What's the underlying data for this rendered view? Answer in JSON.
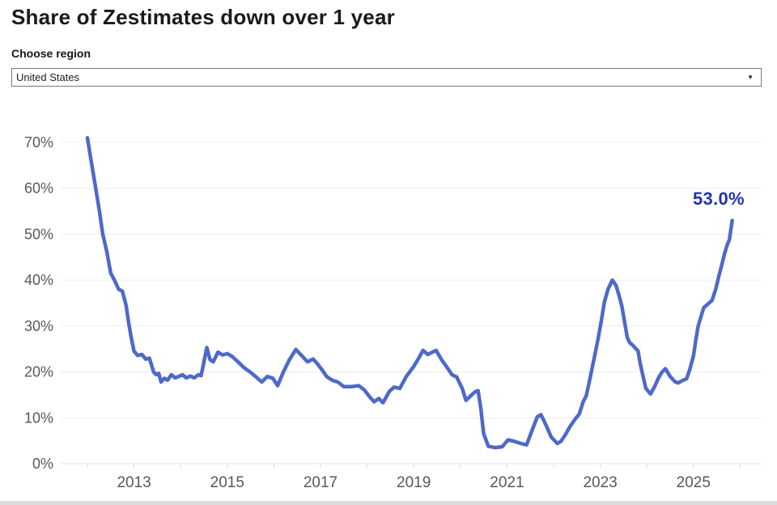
{
  "header": {
    "title": "Share of Zestimates down over 1 year"
  },
  "controls": {
    "region_label": "Choose region",
    "region_value": "United States",
    "dropdown_arrow_icon": "▼"
  },
  "colors": {
    "line": "#4e69c9",
    "end_label": "#1f35ad",
    "axis_text": "#56585a",
    "gridline": "#ececec",
    "baseline": "#e6e6e6",
    "tick": "#d9d9d9",
    "title_text": "#1a1a1a",
    "select_border": "#7a7a7a",
    "bottom_strip": "#dcdcdc"
  },
  "chart_data": {
    "type": "line",
    "title": "Share of Zestimates down over 1 year",
    "region": "United States",
    "y_unit": "%",
    "grid": true,
    "y_ticks": [
      0,
      10,
      20,
      30,
      40,
      50,
      60,
      70
    ],
    "y_range": [
      0,
      70
    ],
    "x_labeled_years": [
      2013,
      2015,
      2017,
      2019,
      2021,
      2023,
      2025
    ],
    "x_minor_years": [
      2012,
      2013,
      2014,
      2015,
      2016,
      2017,
      2018,
      2019,
      2020,
      2021,
      2022,
      2023,
      2024,
      2025,
      2026
    ],
    "x_range": [
      2011.4,
      2026.5
    ],
    "end_label": "53.0%",
    "end_value": 53.0,
    "series": [
      {
        "name": "United States",
        "points": [
          [
            2012.0,
            71
          ],
          [
            2012.08,
            66
          ],
          [
            2012.17,
            60.5
          ],
          [
            2012.25,
            55.5
          ],
          [
            2012.33,
            50
          ],
          [
            2012.42,
            46
          ],
          [
            2012.5,
            41.5
          ],
          [
            2012.58,
            40
          ],
          [
            2012.67,
            38
          ],
          [
            2012.75,
            37.6
          ],
          [
            2012.83,
            34.5
          ],
          [
            2012.88,
            31
          ],
          [
            2012.94,
            27.5
          ],
          [
            2013.0,
            24.5
          ],
          [
            2013.08,
            23.6
          ],
          [
            2013.17,
            23.8
          ],
          [
            2013.25,
            22.8
          ],
          [
            2013.33,
            23.0
          ],
          [
            2013.42,
            20.0
          ],
          [
            2013.48,
            19.4
          ],
          [
            2013.53,
            19.7
          ],
          [
            2013.58,
            17.8
          ],
          [
            2013.65,
            18.6
          ],
          [
            2013.72,
            18.2
          ],
          [
            2013.8,
            19.4
          ],
          [
            2013.88,
            18.7
          ],
          [
            2013.96,
            19.0
          ],
          [
            2014.04,
            19.4
          ],
          [
            2014.12,
            18.7
          ],
          [
            2014.21,
            19.1
          ],
          [
            2014.29,
            18.7
          ],
          [
            2014.38,
            19.4
          ],
          [
            2014.44,
            19.2
          ],
          [
            2014.5,
            22.2
          ],
          [
            2014.56,
            25.3
          ],
          [
            2014.63,
            22.7
          ],
          [
            2014.7,
            22.2
          ],
          [
            2014.8,
            24.3
          ],
          [
            2014.9,
            23.7
          ],
          [
            2015.0,
            24.0
          ],
          [
            2015.1,
            23.4
          ],
          [
            2015.22,
            22.3
          ],
          [
            2015.35,
            21.0
          ],
          [
            2015.5,
            19.9
          ],
          [
            2015.64,
            18.7
          ],
          [
            2015.74,
            17.8
          ],
          [
            2015.86,
            19.0
          ],
          [
            2015.98,
            18.6
          ],
          [
            2016.08,
            17.0
          ],
          [
            2016.2,
            19.9
          ],
          [
            2016.33,
            22.6
          ],
          [
            2016.47,
            24.9
          ],
          [
            2016.6,
            23.5
          ],
          [
            2016.72,
            22.2
          ],
          [
            2016.84,
            22.8
          ],
          [
            2016.94,
            21.7
          ],
          [
            2017.03,
            20.5
          ],
          [
            2017.13,
            19.0
          ],
          [
            2017.25,
            18.2
          ],
          [
            2017.37,
            17.8
          ],
          [
            2017.5,
            16.8
          ],
          [
            2017.66,
            16.8
          ],
          [
            2017.82,
            17.0
          ],
          [
            2017.94,
            16.1
          ],
          [
            2018.05,
            14.6
          ],
          [
            2018.15,
            13.5
          ],
          [
            2018.25,
            14.2
          ],
          [
            2018.34,
            13.3
          ],
          [
            2018.48,
            15.8
          ],
          [
            2018.58,
            16.7
          ],
          [
            2018.7,
            16.4
          ],
          [
            2018.84,
            19.0
          ],
          [
            2019.0,
            21.2
          ],
          [
            2019.1,
            22.9
          ],
          [
            2019.2,
            24.7
          ],
          [
            2019.3,
            23.8
          ],
          [
            2019.4,
            24.3
          ],
          [
            2019.48,
            24.7
          ],
          [
            2019.6,
            22.6
          ],
          [
            2019.7,
            21.2
          ],
          [
            2019.82,
            19.4
          ],
          [
            2019.92,
            18.9
          ],
          [
            2020.04,
            16.4
          ],
          [
            2020.12,
            13.8
          ],
          [
            2020.22,
            14.8
          ],
          [
            2020.32,
            15.7
          ],
          [
            2020.38,
            15.9
          ],
          [
            2020.44,
            12.0
          ],
          [
            2020.5,
            6.5
          ],
          [
            2020.6,
            3.8
          ],
          [
            2020.75,
            3.5
          ],
          [
            2020.9,
            3.7
          ],
          [
            2021.02,
            5.2
          ],
          [
            2021.15,
            4.9
          ],
          [
            2021.3,
            4.4
          ],
          [
            2021.42,
            4.1
          ],
          [
            2021.55,
            7.6
          ],
          [
            2021.65,
            10.2
          ],
          [
            2021.73,
            10.7
          ],
          [
            2021.85,
            8.1
          ],
          [
            2021.95,
            5.8
          ],
          [
            2022.08,
            4.4
          ],
          [
            2022.16,
            4.9
          ],
          [
            2022.25,
            6.3
          ],
          [
            2022.35,
            8.1
          ],
          [
            2022.46,
            9.7
          ],
          [
            2022.55,
            10.8
          ],
          [
            2022.63,
            13.4
          ],
          [
            2022.7,
            14.8
          ],
          [
            2022.76,
            17.6
          ],
          [
            2022.82,
            20.5
          ],
          [
            2022.88,
            23.5
          ],
          [
            2022.95,
            27.0
          ],
          [
            2023.02,
            31.0
          ],
          [
            2023.09,
            35.3
          ],
          [
            2023.17,
            38.1
          ],
          [
            2023.26,
            40.0
          ],
          [
            2023.34,
            38.8
          ],
          [
            2023.4,
            36.8
          ],
          [
            2023.46,
            34.5
          ],
          [
            2023.52,
            31.0
          ],
          [
            2023.58,
            27.5
          ],
          [
            2023.63,
            26.4
          ],
          [
            2023.7,
            25.8
          ],
          [
            2023.76,
            25.1
          ],
          [
            2023.81,
            24.6
          ],
          [
            2023.86,
            21.7
          ],
          [
            2023.92,
            19.0
          ],
          [
            2023.98,
            16.4
          ],
          [
            2024.08,
            15.2
          ],
          [
            2024.17,
            16.9
          ],
          [
            2024.25,
            18.7
          ],
          [
            2024.32,
            19.9
          ],
          [
            2024.4,
            20.7
          ],
          [
            2024.5,
            19.0
          ],
          [
            2024.6,
            17.9
          ],
          [
            2024.67,
            17.6
          ],
          [
            2024.78,
            18.2
          ],
          [
            2024.85,
            18.5
          ],
          [
            2024.92,
            20.5
          ],
          [
            2025.0,
            23.5
          ],
          [
            2025.05,
            27.0
          ],
          [
            2025.1,
            30.0
          ],
          [
            2025.16,
            32.0
          ],
          [
            2025.22,
            34.0
          ],
          [
            2025.3,
            34.7
          ],
          [
            2025.4,
            35.6
          ],
          [
            2025.48,
            38.1
          ],
          [
            2025.55,
            41.1
          ],
          [
            2025.61,
            43.4
          ],
          [
            2025.66,
            45.5
          ],
          [
            2025.72,
            47.6
          ],
          [
            2025.77,
            48.8
          ],
          [
            2025.83,
            53.0
          ]
        ]
      }
    ]
  }
}
